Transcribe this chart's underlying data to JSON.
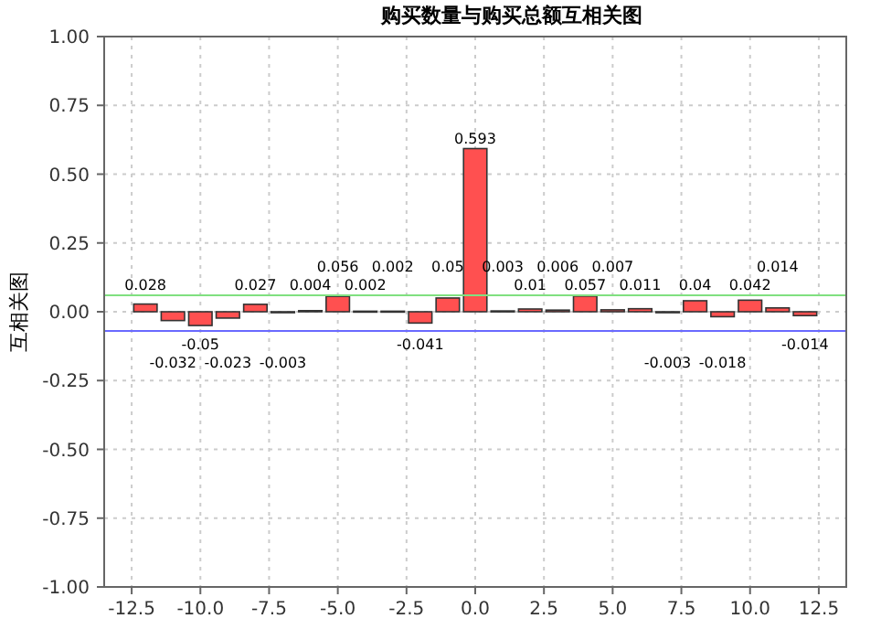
{
  "chart_data": {
    "type": "bar",
    "title": "购买数量与购买总额互相关图",
    "ylabel": "互相关图",
    "x": [
      -12,
      -11,
      -10,
      -9,
      -8,
      -7,
      -6,
      -5,
      -4,
      -3,
      -2,
      -1,
      0,
      1,
      2,
      3,
      4,
      5,
      6,
      7,
      8,
      9,
      10,
      11,
      12
    ],
    "values": [
      0.028,
      -0.032,
      -0.05,
      -0.023,
      0.027,
      -0.003,
      0.004,
      0.056,
      0.002,
      0.002,
      -0.041,
      0.05,
      0.593,
      0.003,
      0.01,
      0.006,
      0.057,
      0.007,
      0.011,
      -0.003,
      0.04,
      -0.018,
      0.042,
      0.014,
      -0.014
    ],
    "color": "#ff5050",
    "data_labels": true,
    "xlim": [
      -13.5,
      13.5
    ],
    "xticks": [
      -12.5,
      {
        "value": -10,
        "label": "-10.0"
      },
      -7.5,
      {
        "value": -5,
        "label": "-5.0"
      },
      -2.5,
      {
        "value": 0,
        "label": "0.0"
      },
      2.5,
      {
        "value": 5,
        "label": "5.0"
      },
      7.5,
      {
        "value": 10,
        "label": "10.0"
      },
      12.5
    ],
    "ylim": [
      -1,
      1
    ],
    "yticks": [
      {
        "value": -1,
        "label": "-1.00"
      },
      {
        "value": -0.75,
        "label": "-0.75"
      },
      {
        "value": -0.5,
        "label": "-0.50"
      },
      {
        "value": -0.25,
        "label": "-0.25"
      },
      {
        "value": 0,
        "label": "0.00"
      },
      {
        "value": 0.25,
        "label": "0.25"
      },
      {
        "value": 0.5,
        "label": "0.50"
      },
      {
        "value": 0.75,
        "label": "0.75"
      },
      {
        "value": 1,
        "label": "1.00"
      }
    ],
    "ref_lines": [
      {
        "axis": "y",
        "value": 0.06,
        "color": "#80e080"
      },
      {
        "axis": "y",
        "value": -0.07,
        "color": "#6a6aff"
      }
    ],
    "grid": true
  }
}
